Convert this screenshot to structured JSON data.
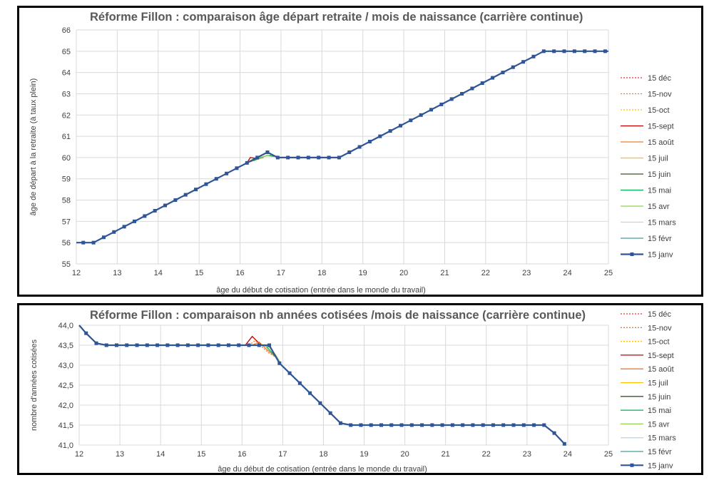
{
  "chart_data": [
    {
      "type": "line",
      "title": "Réforme Fillon : comparaison âge départ retraite / mois de naissance (carrière continue)",
      "xlabel": "âge du début de cotisation (entrée dans le monde du travail)",
      "ylabel": "âge de départ à la retraite (à taux plein)",
      "xlim": [
        12,
        25
      ],
      "ylim": [
        55,
        66
      ],
      "x_ticks": [
        "12",
        "13",
        "14",
        "15",
        "16",
        "17",
        "18",
        "19",
        "20",
        "21",
        "22",
        "23",
        "24",
        "25"
      ],
      "y_ticks": [
        "55",
        "56",
        "57",
        "58",
        "59",
        "60",
        "61",
        "62",
        "63",
        "64",
        "65",
        "66"
      ],
      "grid": true,
      "legend_position": "right",
      "series": [
        {
          "name": "15 déc",
          "color": "#e03030",
          "dash": "2,2",
          "points": [
            [
              16.17,
              59.75
            ],
            [
              16.25,
              60.0
            ],
            [
              16.42,
              59.95
            ]
          ]
        },
        {
          "name": "15-nov",
          "color": "#ed7d31",
          "dash": "2,2",
          "points": [
            [
              16.17,
              59.75
            ],
            [
              16.33,
              59.88
            ],
            [
              16.5,
              59.95
            ]
          ]
        },
        {
          "name": "15-oct",
          "color": "#ffc000",
          "dash": "2,2",
          "points": []
        },
        {
          "name": "15-sept",
          "color": "#c00000",
          "dash": "",
          "points": [
            [
              16.17,
              59.75
            ],
            [
              16.25,
              60.0
            ],
            [
              16.42,
              59.95
            ]
          ]
        },
        {
          "name": "15 août",
          "color": "#ed7d31",
          "dash": "",
          "points": [
            [
              16.25,
              59.8
            ],
            [
              16.42,
              59.92
            ],
            [
              16.58,
              60.0
            ]
          ]
        },
        {
          "name": "15 juil",
          "color": "#ffc000",
          "dash": "",
          "points": []
        },
        {
          "name": "15 juin",
          "color": "#375623",
          "dash": "",
          "points": []
        },
        {
          "name": "15 mai",
          "color": "#00b050",
          "dash": "",
          "points": [
            [
              16.33,
              59.85
            ],
            [
              16.5,
              60.0
            ],
            [
              16.67,
              60.1
            ],
            [
              16.83,
              60.05
            ]
          ]
        },
        {
          "name": "15 avr",
          "color": "#92d050",
          "dash": "",
          "points": [
            [
              16.42,
              59.9
            ],
            [
              16.58,
              60.05
            ],
            [
              16.75,
              60.12
            ],
            [
              16.92,
              60.03
            ]
          ]
        },
        {
          "name": "15 mars",
          "color": "#bdd7ee",
          "dash": "",
          "points": []
        },
        {
          "name": "15 févr",
          "color": "#4a9b9b",
          "dash": "",
          "points": []
        },
        {
          "name": "15 janv",
          "color": "#2f5597",
          "dash": "",
          "marker": true,
          "points": [
            [
              12.0,
              56.0
            ],
            [
              12.17,
              56.0
            ],
            [
              12.42,
              56.0
            ],
            [
              12.67,
              56.25
            ],
            [
              12.92,
              56.5
            ],
            [
              13.17,
              56.75
            ],
            [
              13.42,
              57.0
            ],
            [
              13.67,
              57.25
            ],
            [
              13.92,
              57.5
            ],
            [
              14.17,
              57.75
            ],
            [
              14.42,
              58.0
            ],
            [
              14.67,
              58.25
            ],
            [
              14.92,
              58.5
            ],
            [
              15.17,
              58.75
            ],
            [
              15.42,
              59.0
            ],
            [
              15.67,
              59.25
            ],
            [
              15.92,
              59.5
            ],
            [
              16.17,
              59.75
            ],
            [
              16.42,
              60.0
            ],
            [
              16.67,
              60.25
            ],
            [
              16.92,
              60.0
            ],
            [
              17.17,
              60.0
            ],
            [
              17.42,
              60.0
            ],
            [
              17.67,
              60.0
            ],
            [
              17.92,
              60.0
            ],
            [
              18.17,
              60.0
            ],
            [
              18.42,
              60.0
            ],
            [
              18.67,
              60.25
            ],
            [
              18.92,
              60.5
            ],
            [
              19.17,
              60.75
            ],
            [
              19.42,
              61.0
            ],
            [
              19.67,
              61.25
            ],
            [
              19.92,
              61.5
            ],
            [
              20.17,
              61.75
            ],
            [
              20.42,
              62.0
            ],
            [
              20.67,
              62.25
            ],
            [
              20.92,
              62.5
            ],
            [
              21.17,
              62.75
            ],
            [
              21.42,
              63.0
            ],
            [
              21.67,
              63.25
            ],
            [
              21.92,
              63.5
            ],
            [
              22.17,
              63.75
            ],
            [
              22.42,
              64.0
            ],
            [
              22.67,
              64.25
            ],
            [
              22.92,
              64.5
            ],
            [
              23.17,
              64.75
            ],
            [
              23.42,
              65.0
            ],
            [
              23.67,
              65.0
            ],
            [
              23.92,
              65.0
            ],
            [
              24.17,
              65.0
            ],
            [
              24.42,
              65.0
            ],
            [
              24.67,
              65.0
            ],
            [
              24.92,
              65.0
            ],
            [
              25.0,
              65.0
            ]
          ]
        }
      ]
    },
    {
      "type": "line",
      "title": "Réforme Fillon : comparaison nb années cotisées /mois de naissance (carrière continue)",
      "xlabel": "âge du début de cotisation (entrée dans le monde du travail)",
      "ylabel": "nombre d'années cotisées",
      "xlim": [
        12,
        25
      ],
      "ylim": [
        41.0,
        44.0
      ],
      "x_ticks": [
        "12",
        "13",
        "14",
        "15",
        "16",
        "17",
        "18",
        "19",
        "20",
        "21",
        "22",
        "23",
        "24",
        "25"
      ],
      "y_ticks": [
        "41,0",
        "41,5",
        "42,0",
        "42,5",
        "43,0",
        "43,5",
        "44,0"
      ],
      "grid": true,
      "legend_position": "right",
      "series": [
        {
          "name": "15 déc",
          "color": "#e03030",
          "dash": "2,2",
          "points": [
            [
              16.08,
              43.5
            ],
            [
              16.25,
              43.72
            ],
            [
              16.42,
              43.55
            ]
          ]
        },
        {
          "name": "15-nov",
          "color": "#ed7d31",
          "dash": "2,2",
          "points": [
            [
              16.17,
              43.5
            ],
            [
              16.33,
              43.62
            ],
            [
              16.5,
              43.45
            ],
            [
              16.67,
              43.3
            ],
            [
              16.83,
              43.2
            ]
          ]
        },
        {
          "name": "15-oct",
          "color": "#ffc000",
          "dash": "2,2",
          "points": []
        },
        {
          "name": "15-sept",
          "color": "#c00000",
          "dash": "",
          "points": [
            [
              16.08,
              43.5
            ],
            [
              16.25,
              43.72
            ],
            [
              16.42,
              43.55
            ]
          ]
        },
        {
          "name": "15 août",
          "color": "#ed7d31",
          "dash": "",
          "points": [
            [
              16.25,
              43.5
            ],
            [
              16.42,
              43.58
            ],
            [
              16.58,
              43.42
            ],
            [
              16.83,
              43.2
            ]
          ]
        },
        {
          "name": "15 juil",
          "color": "#ffc000",
          "dash": "",
          "points": []
        },
        {
          "name": "15 juin",
          "color": "#375623",
          "dash": "",
          "points": []
        },
        {
          "name": "15 mai",
          "color": "#00b050",
          "dash": "",
          "points": [
            [
              16.42,
              43.5
            ],
            [
              16.58,
              43.48
            ],
            [
              16.75,
              43.3
            ],
            [
              16.92,
              43.1
            ]
          ]
        },
        {
          "name": "15 avr",
          "color": "#92d050",
          "dash": "",
          "points": [
            [
              16.5,
              43.5
            ],
            [
              16.67,
              43.45
            ],
            [
              16.83,
              43.25
            ],
            [
              16.92,
              43.1
            ]
          ]
        },
        {
          "name": "15 mars",
          "color": "#bdd7ee",
          "dash": "",
          "points": []
        },
        {
          "name": "15 févr",
          "color": "#4a9b9b",
          "dash": "",
          "points": []
        },
        {
          "name": "15 janv",
          "color": "#2f5597",
          "dash": "",
          "marker": true,
          "points": [
            [
              12.0,
              44.0
            ],
            [
              12.17,
              43.8
            ],
            [
              12.42,
              43.55
            ],
            [
              12.67,
              43.5
            ],
            [
              12.92,
              43.5
            ],
            [
              13.17,
              43.5
            ],
            [
              13.42,
              43.5
            ],
            [
              13.67,
              43.5
            ],
            [
              13.92,
              43.5
            ],
            [
              14.17,
              43.5
            ],
            [
              14.42,
              43.5
            ],
            [
              14.67,
              43.5
            ],
            [
              14.92,
              43.5
            ],
            [
              15.17,
              43.5
            ],
            [
              15.42,
              43.5
            ],
            [
              15.67,
              43.5
            ],
            [
              15.92,
              43.5
            ],
            [
              16.17,
              43.5
            ],
            [
              16.42,
              43.5
            ],
            [
              16.67,
              43.5
            ],
            [
              16.92,
              43.05
            ],
            [
              17.17,
              42.8
            ],
            [
              17.42,
              42.55
            ],
            [
              17.67,
              42.3
            ],
            [
              17.92,
              42.05
            ],
            [
              18.17,
              41.8
            ],
            [
              18.42,
              41.55
            ],
            [
              18.67,
              41.5
            ],
            [
              18.92,
              41.5
            ],
            [
              19.17,
              41.5
            ],
            [
              19.42,
              41.5
            ],
            [
              19.67,
              41.5
            ],
            [
              19.92,
              41.5
            ],
            [
              20.17,
              41.5
            ],
            [
              20.42,
              41.5
            ],
            [
              20.67,
              41.5
            ],
            [
              20.92,
              41.5
            ],
            [
              21.17,
              41.5
            ],
            [
              21.42,
              41.5
            ],
            [
              21.67,
              41.5
            ],
            [
              21.92,
              41.5
            ],
            [
              22.17,
              41.5
            ],
            [
              22.42,
              41.5
            ],
            [
              22.67,
              41.5
            ],
            [
              22.92,
              41.5
            ],
            [
              23.17,
              41.5
            ],
            [
              23.42,
              41.5
            ],
            [
              23.67,
              41.3
            ],
            [
              23.92,
              41.03
            ]
          ]
        }
      ]
    }
  ]
}
